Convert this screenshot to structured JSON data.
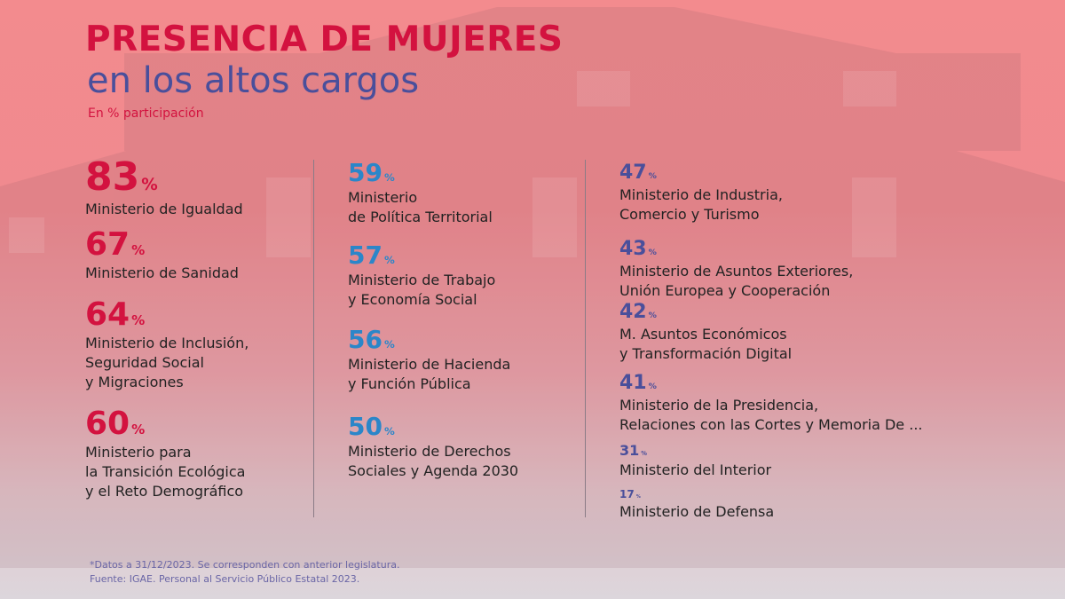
{
  "title": "PRESENCIA DE MUJERES",
  "subtitle": "en los altos cargos",
  "unit_label": "En % participación",
  "percent_sign": "%",
  "colors": {
    "top_tier": "#d3123f",
    "middle_tier": "#2b86c9",
    "lower_tier": "#4a4f9b"
  },
  "chart_data": {
    "type": "table",
    "title": "PRESENCIA DE MUJERES en los altos cargos",
    "unit": "En % participación",
    "columns": [
      [
        {
          "value": 83,
          "label": "Ministerio de Igualdad"
        },
        {
          "value": 67,
          "label": "Ministerio de Sanidad"
        },
        {
          "value": 64,
          "label": "Ministerio de Inclusión,\nSeguridad Social\ny Migraciones"
        },
        {
          "value": 60,
          "label": "Ministerio para\nla Transición Ecológica\ny el Reto Demográfico"
        }
      ],
      [
        {
          "value": 59,
          "label": "Ministerio\nde Política Territorial"
        },
        {
          "value": 57,
          "label": "Ministerio de Trabajo\ny Economía Social"
        },
        {
          "value": 56,
          "label": "Ministerio de Hacienda\ny Función Pública"
        },
        {
          "value": 50,
          "label": "Ministerio de Derechos\nSociales y Agenda 2030"
        }
      ],
      [
        {
          "value": 47,
          "label": "Ministerio de Industria,\nComercio y Turismo"
        },
        {
          "value": 43,
          "label": "Ministerio de Asuntos Exteriores,\nUnión Europea y Cooperación"
        },
        {
          "value": 42,
          "label": "M. Asuntos Económicos\ny Transformación Digital"
        },
        {
          "value": 41,
          "label": "Ministerio de la Presidencia,\nRelaciones con las Cortes y Memoria De ..."
        },
        {
          "value": 31,
          "label": "Ministerio del Interior"
        },
        {
          "value": 17,
          "label": "Ministerio de Defensa"
        }
      ]
    ]
  },
  "footnote": {
    "line1": "*Datos a 31/12/2023. Se corresponden con anterior legislatura.",
    "line2": "Fuente: IGAE. Personal al Servicio Público Estatal 2023."
  }
}
